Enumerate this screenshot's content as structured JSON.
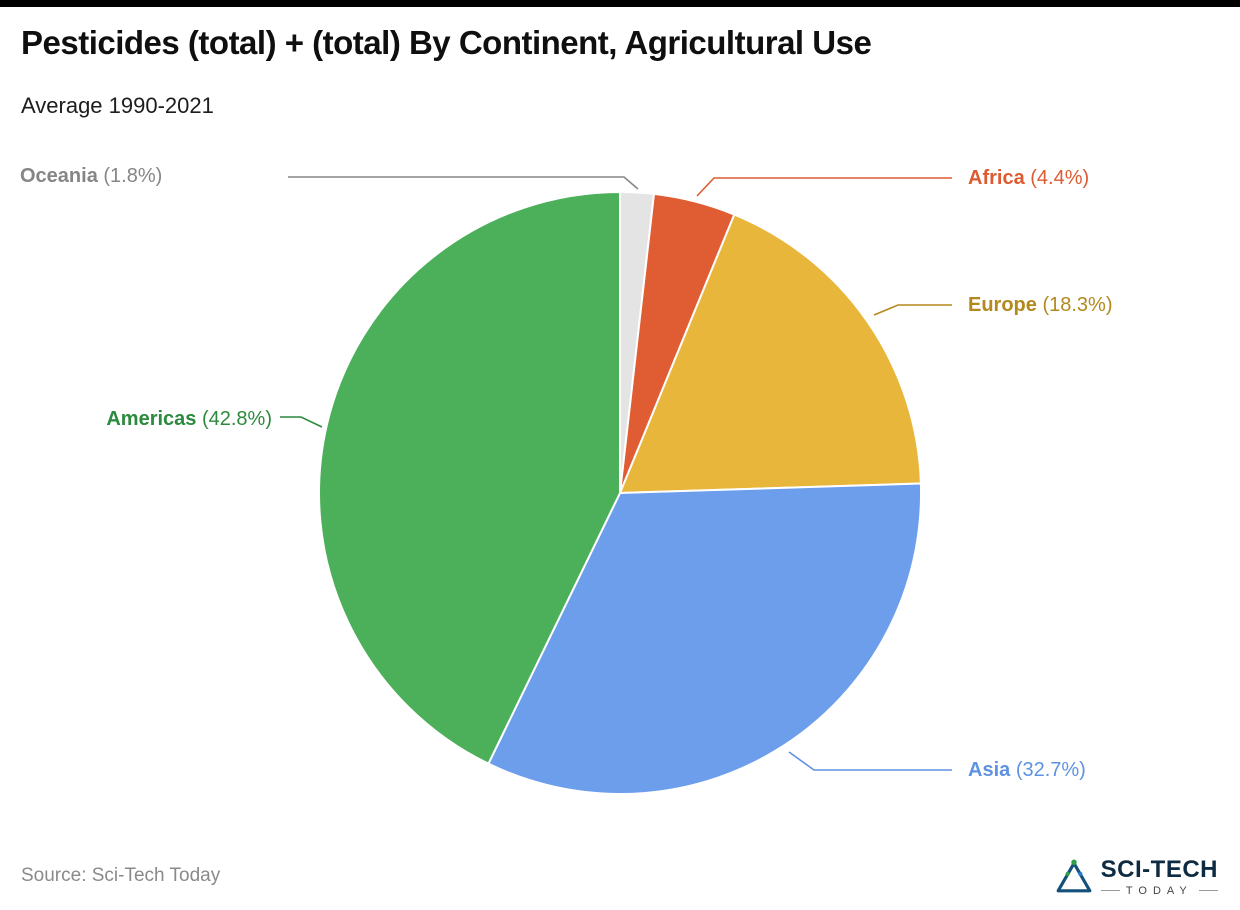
{
  "header": {
    "title": "Pesticides (total) + (total) By Continent, Agricultural Use",
    "subtitle": "Average 1990-2021"
  },
  "chart_data": {
    "type": "pie",
    "title": "Pesticides (total) + (total) By Continent, Agricultural Use",
    "subtitle": "Average 1990-2021",
    "units": "%",
    "start_angle_deg": 0,
    "direction": "clockwise",
    "legend_position": "callout-labels",
    "categories": [
      "Oceania",
      "Africa",
      "Europe",
      "Asia",
      "Americas"
    ],
    "values": [
      1.8,
      4.4,
      18.3,
      32.7,
      42.8
    ],
    "slices": [
      {
        "label": "Oceania",
        "value": 1.8,
        "pct": "(1.8%)",
        "color": "#e4e4e4",
        "label_color": "#868686"
      },
      {
        "label": "Africa",
        "value": 4.4,
        "pct": "(4.4%)",
        "color": "#e05c33",
        "label_color": "#dd5b31"
      },
      {
        "label": "Europe",
        "value": 18.3,
        "pct": "(18.3%)",
        "color": "#e8b63b",
        "label_color": "#b3891d"
      },
      {
        "label": "Asia",
        "value": 32.7,
        "pct": "(32.7%)",
        "color": "#6d9eeb",
        "label_color": "#5e92e2"
      },
      {
        "label": "Americas",
        "value": 42.8,
        "pct": "(42.8%)",
        "color": "#4cb05a",
        "label_color": "#2c8a3e"
      }
    ]
  },
  "footer": {
    "source": "Source: Sci-Tech Today"
  },
  "logo": {
    "brand": "SCI-TECH",
    "sub": "TODAY"
  }
}
